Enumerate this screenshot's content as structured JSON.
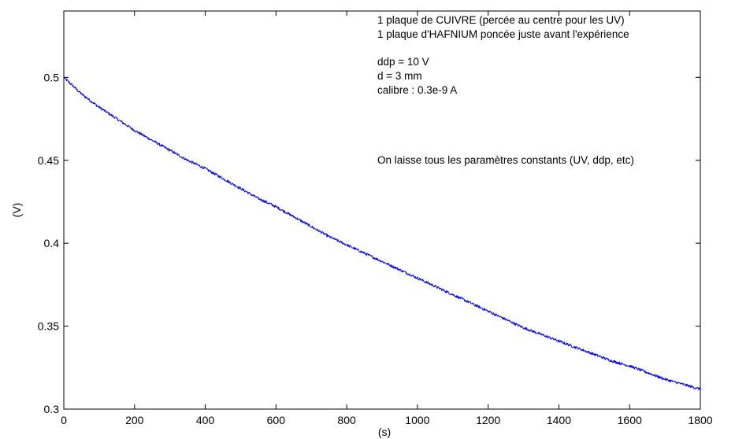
{
  "chart_data": {
    "type": "line",
    "title": "",
    "xlabel": "(s)",
    "ylabel": "(V)",
    "xlim": [
      0,
      1800
    ],
    "ylim": [
      0.3,
      0.54
    ],
    "xticks": [
      0,
      200,
      400,
      600,
      800,
      1000,
      1200,
      1400,
      1600,
      1800
    ],
    "xtick_labels": [
      "0",
      "200",
      "400",
      "600",
      "800",
      "1000",
      "1200",
      "1400",
      "1600",
      "1800"
    ],
    "yticks": [
      0.3,
      0.35,
      0.4,
      0.45,
      0.5
    ],
    "ytick_labels": [
      "0.3",
      "0.35",
      "0.4",
      "0.45",
      "0.5"
    ],
    "grid": false,
    "line_color": "#0000ff",
    "series": [
      {
        "x": [
          0,
          50,
          100,
          150,
          200,
          250,
          300,
          350,
          400,
          450,
          500,
          550,
          600,
          650,
          700,
          750,
          800,
          850,
          900,
          950,
          1000,
          1050,
          1100,
          1150,
          1200,
          1250,
          1300,
          1350,
          1400,
          1450,
          1500,
          1550,
          1600,
          1650,
          1700,
          1750,
          1800
        ],
        "y": [
          0.5,
          0.49,
          0.482,
          0.475,
          0.468,
          0.462,
          0.456,
          0.45,
          0.445,
          0.439,
          0.433,
          0.427,
          0.422,
          0.416,
          0.41,
          0.404,
          0.399,
          0.394,
          0.389,
          0.384,
          0.379,
          0.374,
          0.369,
          0.364,
          0.359,
          0.354,
          0.349,
          0.345,
          0.341,
          0.337,
          0.333,
          0.329,
          0.326,
          0.322,
          0.318,
          0.315,
          0.312
        ]
      }
    ],
    "annotations": [
      "1 plaque de CUIVRE (percée au centre pour les UV)",
      "1 plaque d'HAFNIUM poncée juste avant l'expérience",
      "ddp = 10 V",
      "d = 3 mm",
      "calibre : 0.3e-9 A",
      "On laisse tous les paramètres constants (UV, ddp, etc)"
    ]
  }
}
